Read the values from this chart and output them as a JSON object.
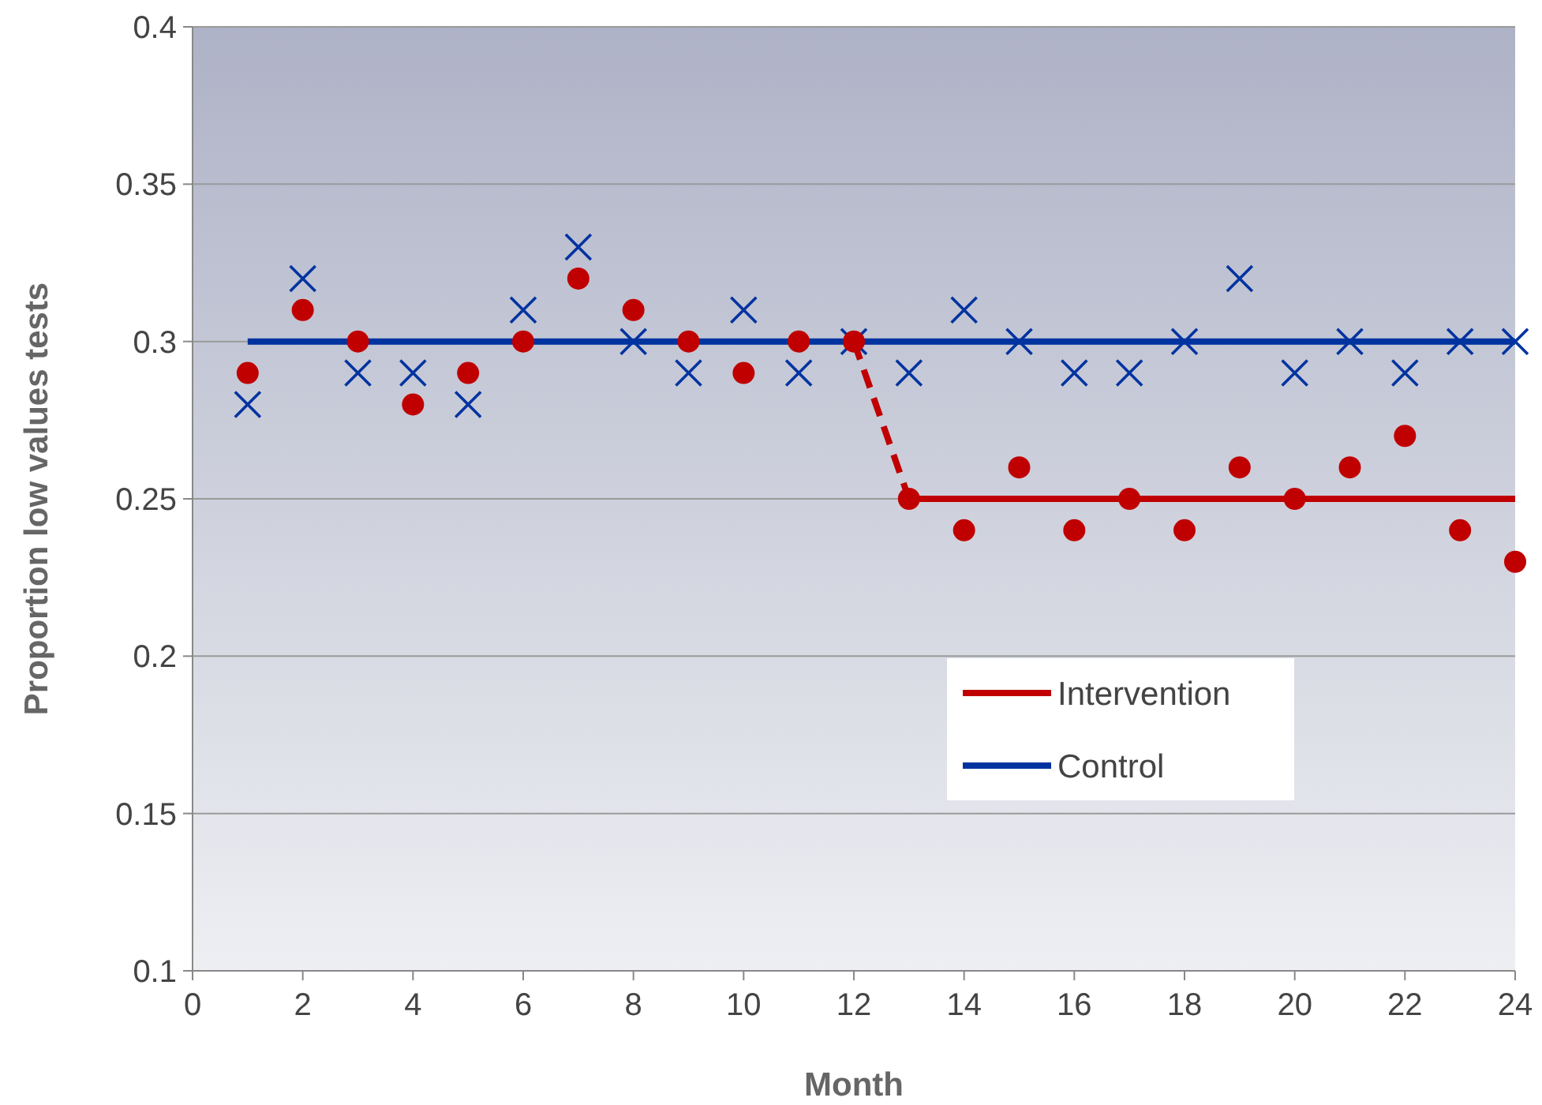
{
  "chart_data": {
    "type": "line",
    "xlabel": "Month",
    "ylabel": "Proportion low values tests",
    "xlim": [
      0,
      24
    ],
    "ylim": [
      0.1,
      0.4
    ],
    "xticks": [
      0,
      2,
      4,
      6,
      8,
      10,
      12,
      14,
      16,
      18,
      20,
      22,
      24
    ],
    "yticks": [
      0.1,
      0.15,
      0.2,
      0.25,
      0.3,
      0.35,
      0.4
    ],
    "grid": "y",
    "legend": "right",
    "series": [
      {
        "name": "Intervention",
        "color": "#c00000",
        "line_style": "solid",
        "marker": "none",
        "x": [
          13,
          24
        ],
        "values": [
          0.25,
          0.25
        ]
      },
      {
        "name": "Control",
        "color": "#0033a0",
        "line_style": "solid",
        "marker": "none",
        "x": [
          1,
          24
        ],
        "values": [
          0.3,
          0.3
        ]
      },
      {
        "color": "#c00000",
        "line_style": "dashed",
        "marker": "none",
        "x": [
          12,
          13
        ],
        "values": [
          0.3,
          0.25
        ]
      },
      {
        "type": "scatter",
        "color": "#0033a0",
        "marker": "cross",
        "x": [
          1,
          2,
          3,
          4,
          5,
          6,
          7,
          8,
          9,
          10,
          11,
          12,
          13,
          14,
          15,
          16,
          17,
          18,
          19,
          20,
          21,
          22,
          23,
          24
        ],
        "values": [
          0.28,
          0.32,
          0.29,
          0.29,
          0.28,
          0.31,
          0.33,
          0.3,
          0.29,
          0.31,
          0.29,
          0.3,
          0.29,
          0.31,
          0.3,
          0.29,
          0.29,
          0.3,
          0.32,
          0.29,
          0.3,
          0.29,
          0.3,
          0.3
        ]
      },
      {
        "type": "scatter",
        "color": "#c00000",
        "marker": "circle",
        "x": [
          1,
          2,
          3,
          4,
          5,
          6,
          7,
          8,
          9,
          10,
          11,
          12,
          13,
          14,
          15,
          16,
          17,
          18,
          19,
          20,
          21,
          22,
          23,
          24
        ],
        "values": [
          0.29,
          0.31,
          0.3,
          0.28,
          0.29,
          0.3,
          0.32,
          0.31,
          0.3,
          0.29,
          0.3,
          0.3,
          0.25,
          0.24,
          0.26,
          0.24,
          0.25,
          0.24,
          0.26,
          0.25,
          0.26,
          0.27,
          0.24,
          0.23
        ]
      }
    ]
  }
}
